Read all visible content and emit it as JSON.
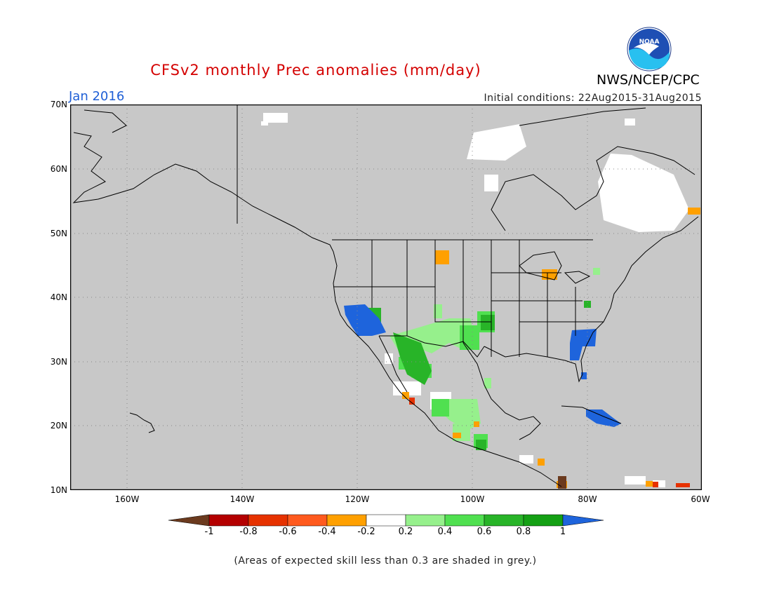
{
  "header": {
    "title": "CFSv2 monthly Prec anomalies (mm/day)",
    "month": "Jan 2016",
    "initial_conditions": "Initial conditions: 22Aug2015-31Aug2015",
    "agency": "NWS/NCEP/CPC",
    "logo_text": "NOAA"
  },
  "axes": {
    "y_labels": [
      "70N",
      "60N",
      "50N",
      "40N",
      "30N",
      "20N",
      "10N"
    ],
    "x_labels": [
      "160W",
      "140W",
      "120W",
      "100W",
      "80W",
      "60W"
    ]
  },
  "legend": {
    "labels": [
      "-1",
      "-0.8",
      "-0.6",
      "-0.4",
      "-0.2",
      "0.2",
      "0.4",
      "0.6",
      "0.8",
      "1"
    ],
    "colors": [
      "#6b3a1e",
      "#b40000",
      "#e63200",
      "#ff5a1e",
      "#ffa000",
      "#ffffff",
      "#96f08c",
      "#50e050",
      "#28b428",
      "#14a014",
      "#1e64dc"
    ]
  },
  "footnote": "(Areas of expected skill less than 0.3 are shaded in grey.)",
  "colors": {
    "map_background": "#c8c8c8",
    "title": "#d40000",
    "month": "#1f5fd6"
  }
}
